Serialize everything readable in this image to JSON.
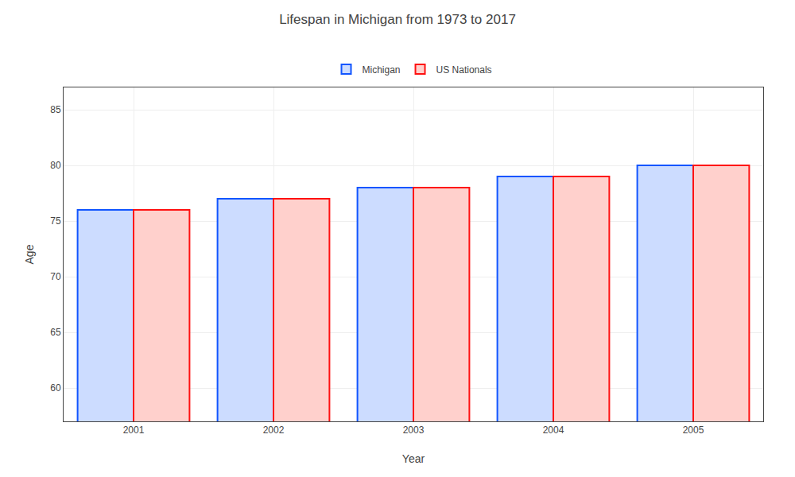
{
  "chart_data": {
    "type": "bar",
    "title": "Lifespan in Michigan from 1973 to 2017",
    "xlabel": "Year",
    "ylabel": "Age",
    "categories": [
      "2001",
      "2002",
      "2003",
      "2004",
      "2005"
    ],
    "series": [
      {
        "name": "Michigan",
        "color": "#ccdcff",
        "values": [
          76.0,
          77.0,
          78.0,
          79.0,
          80.0
        ]
      },
      {
        "name": "US Nationals",
        "color": "#ffd0cc",
        "values": [
          76.0,
          77.0,
          78.0,
          79.0,
          80.0
        ]
      }
    ],
    "ylim": [
      57,
      87
    ],
    "yticks": [
      60,
      65,
      70,
      75,
      80,
      85
    ],
    "grid": true,
    "legend": "top"
  }
}
